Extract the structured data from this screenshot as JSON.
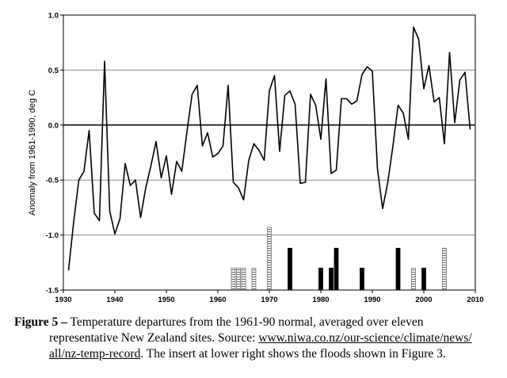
{
  "chart_data": {
    "type": "line",
    "ylabel": "Anomaly from 1961-1990, deg C",
    "xlim": [
      1930,
      2010
    ],
    "ylim": [
      -1.5,
      1.0
    ],
    "x_ticks": [
      1930,
      1940,
      1950,
      1960,
      1970,
      1980,
      1990,
      2000,
      2010
    ],
    "y_ticks": [
      -1.5,
      -1.0,
      -0.5,
      0.0,
      0.5,
      1.0
    ],
    "y_tick_labels": [
      "-1.5",
      "-1.0",
      "-0.5",
      "0.0",
      "0.5",
      "1.0"
    ],
    "grid": "horizontal",
    "zero_line": 0.0,
    "series": [
      {
        "color": "#000000",
        "x": [
          1931,
          1932,
          1933,
          1934,
          1935,
          1936,
          1937,
          1938,
          1939,
          1940,
          1941,
          1942,
          1943,
          1944,
          1945,
          1946,
          1947,
          1948,
          1949,
          1950,
          1951,
          1952,
          1953,
          1954,
          1955,
          1956,
          1957,
          1958,
          1959,
          1960,
          1961,
          1962,
          1963,
          1964,
          1965,
          1966,
          1967,
          1968,
          1969,
          1970,
          1971,
          1972,
          1973,
          1974,
          1975,
          1976,
          1977,
          1978,
          1979,
          1980,
          1981,
          1982,
          1983,
          1984,
          1985,
          1986,
          1987,
          1988,
          1989,
          1990,
          1991,
          1992,
          1993,
          1994,
          1995,
          1996,
          1997,
          1998,
          1999,
          2000,
          2001,
          2002,
          2003,
          2004,
          2005,
          2006,
          2007,
          2008,
          2009
        ],
        "y": [
          -1.32,
          -0.88,
          -0.5,
          -0.42,
          -0.05,
          -0.8,
          -0.87,
          0.58,
          -0.78,
          -0.99,
          -0.85,
          -0.35,
          -0.55,
          -0.5,
          -0.84,
          -0.57,
          -0.37,
          -0.15,
          -0.48,
          -0.28,
          -0.63,
          -0.33,
          -0.42,
          -0.06,
          0.28,
          0.36,
          -0.19,
          -0.07,
          -0.29,
          -0.26,
          -0.19,
          0.36,
          -0.52,
          -0.57,
          -0.68,
          -0.32,
          -0.17,
          -0.23,
          -0.32,
          0.31,
          0.45,
          -0.24,
          0.27,
          0.31,
          0.19,
          -0.53,
          -0.52,
          0.28,
          0.18,
          -0.13,
          0.42,
          -0.44,
          -0.41,
          0.24,
          0.24,
          0.19,
          0.22,
          0.46,
          0.53,
          0.49,
          -0.4,
          -0.76,
          -0.52,
          -0.19,
          0.18,
          0.11,
          -0.13,
          0.89,
          0.78,
          0.33,
          0.54,
          0.21,
          0.25,
          -0.17,
          0.66,
          0.02,
          0.41,
          0.48,
          -0.04
        ]
      }
    ],
    "flood_bars": [
      {
        "year": 1963,
        "height": 0.2,
        "style": "hatched"
      },
      {
        "year": 1964,
        "height": 0.2,
        "style": "hatched"
      },
      {
        "year": 1965,
        "height": 0.2,
        "style": "hatched"
      },
      {
        "year": 1967,
        "height": 0.2,
        "style": "hatched"
      },
      {
        "year": 1970,
        "height": 0.57,
        "style": "hatched"
      },
      {
        "year": 1974,
        "height": 0.38,
        "style": "solid"
      },
      {
        "year": 1980,
        "height": 0.2,
        "style": "solid"
      },
      {
        "year": 1982,
        "height": 0.2,
        "style": "solid"
      },
      {
        "year": 1983,
        "height": 0.38,
        "style": "solid"
      },
      {
        "year": 1988,
        "height": 0.2,
        "style": "solid"
      },
      {
        "year": 1995,
        "height": 0.38,
        "style": "solid"
      },
      {
        "year": 1998,
        "height": 0.2,
        "style": "hatched"
      },
      {
        "year": 2000,
        "height": 0.2,
        "style": "solid"
      },
      {
        "year": 2004,
        "height": 0.38,
        "style": "hatched"
      }
    ]
  },
  "caption": {
    "label": "Figure 5 –",
    "text1": " Temperature departures from the 1961-90 normal, averaged over eleven",
    "text2": "representative New Zealand sites. Source: ",
    "url1": "www.niwa.co.nz/our-science/climate/news/",
    "url2": "all/nz-temp-record",
    "text3": ". The insert at lower right shows the floods shown in Figure 3."
  }
}
